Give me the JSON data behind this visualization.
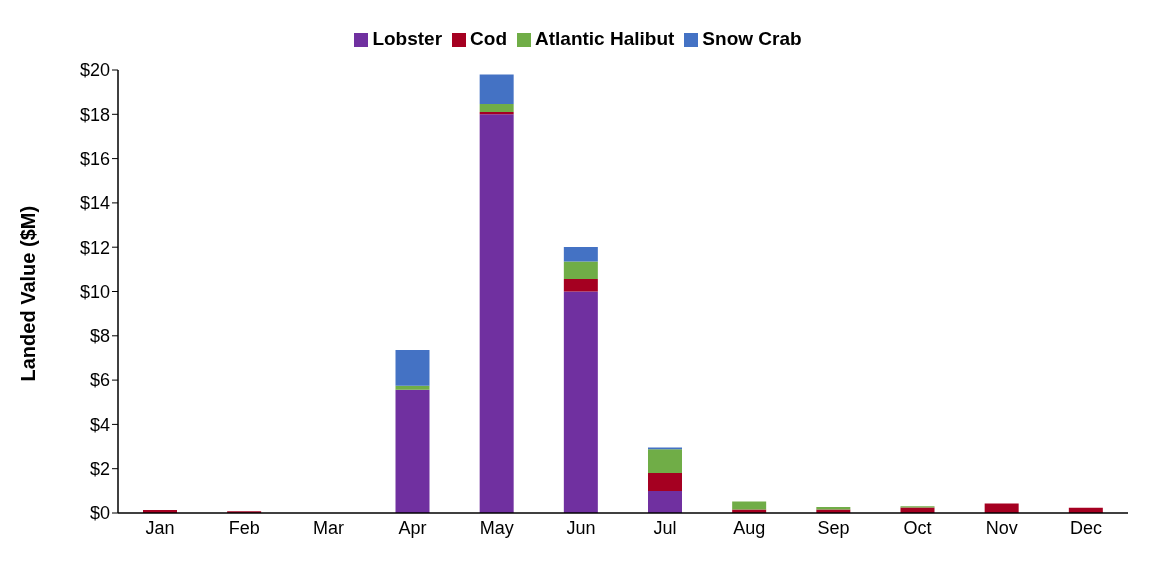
{
  "chart_data": {
    "type": "bar",
    "stacked": true,
    "ylabel": "Landed Value ($M)",
    "categories": [
      "Jan",
      "Feb",
      "Mar",
      "Apr",
      "May",
      "Jun",
      "Jul",
      "Aug",
      "Sep",
      "Oct",
      "Nov",
      "Dec"
    ],
    "series": [
      {
        "name": "Lobster",
        "color": "#7030a0",
        "values": [
          0,
          0,
          0,
          5.56,
          18.0,
          10.0,
          0.99,
          0,
          0,
          0,
          0,
          0
        ]
      },
      {
        "name": "Cod",
        "color": "#a50021",
        "values": [
          0.13,
          0.08,
          0,
          0,
          0.1,
          0.56,
          0.82,
          0.16,
          0.16,
          0.25,
          0.43,
          0.24
        ]
      },
      {
        "name": "Atlantic Halibut",
        "color": "#70ad47",
        "values": [
          0,
          null,
          0,
          0.19,
          0.37,
          0.79,
          1.07,
          0.36,
          0.11,
          0.05,
          null,
          0
        ]
      },
      {
        "name": "Snow Crab",
        "color": "#4472c4",
        "values": [
          0,
          0,
          0,
          1.61,
          1.33,
          0.66,
          0.08,
          null,
          0,
          0,
          0,
          0
        ]
      }
    ],
    "ylim": [
      0,
      20
    ],
    "yticks": [
      {
        "value": 0,
        "label": "$0"
      },
      {
        "value": 2,
        "label": "$2"
      },
      {
        "value": 4,
        "label": "$4"
      },
      {
        "value": 6,
        "label": "$6"
      },
      {
        "value": 8,
        "label": "$8"
      },
      {
        "value": 10,
        "label": "$10"
      },
      {
        "value": 12,
        "label": "$12"
      },
      {
        "value": 14,
        "label": "$14"
      },
      {
        "value": 16,
        "label": "$16"
      },
      {
        "value": 18,
        "label": "$18"
      },
      {
        "value": 20,
        "label": "$20"
      }
    ],
    "grid": false,
    "legend": "top"
  }
}
